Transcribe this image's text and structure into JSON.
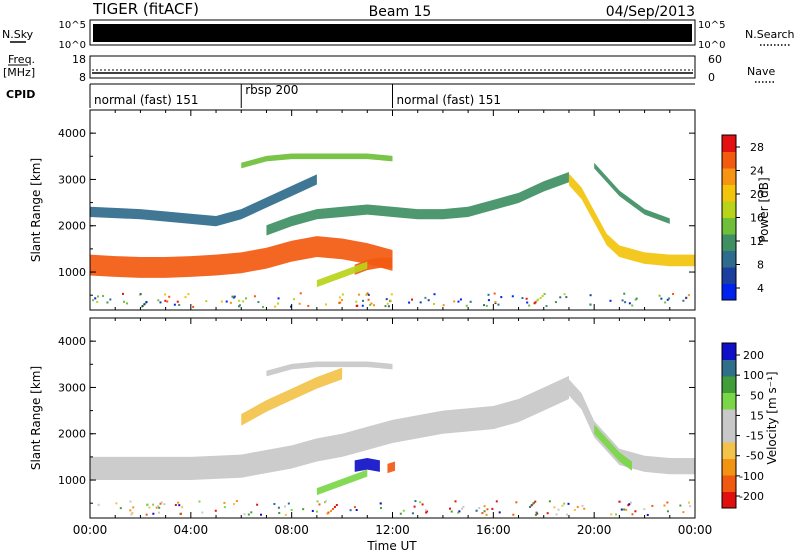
{
  "header": {
    "radar": "TIGER (fitACF)",
    "beam": "Beam 15",
    "date": "04/Sep/2013"
  },
  "summary_panels": {
    "nsky_label": "N.Sky",
    "nsky_ticks": [
      "10^5",
      "10^0"
    ],
    "nsearch_label": "N.Search",
    "nsearch_ticks": [
      "10^5",
      "10^0"
    ],
    "freq_label": "Freq.",
    "freq_unit": "[MHz]",
    "freq_ticks": [
      "18",
      "8"
    ],
    "nave_label": "Nave",
    "nave_ticks": [
      "60",
      "0"
    ],
    "cpid_label": "CPID",
    "cpid_segments": [
      {
        "label": "normal (fast) 151",
        "start_h": 0,
        "end_h": 6
      },
      {
        "label": "rbsp 200",
        "start_h": 6,
        "end_h": 12
      },
      {
        "label": "normal (fast) 151",
        "start_h": 12,
        "end_h": 24
      }
    ]
  },
  "colors": {
    "power_scale": [
      "#0022ee",
      "#1a3f9e",
      "#2f6b8c",
      "#3f8f63",
      "#6fbf3a",
      "#b8d418",
      "#f2c40c",
      "#f79411",
      "#f25a10",
      "#e21010"
    ],
    "velocity_scale": [
      "#e01010",
      "#f05a10",
      "#f29312",
      "#f2c24a",
      "#c8c8c8",
      "#c8c8c8",
      "#7ad646",
      "#3f9e3a",
      "#2f6f8a",
      "#1010c8"
    ]
  },
  "chart_data": [
    {
      "type": "heatmap",
      "name": "power",
      "xlabel": "Time UT",
      "ylabel": "Slant Range [km]",
      "xlim": [
        0,
        24
      ],
      "ylim": [
        180,
        4500
      ],
      "x_ticks": [
        "00:00",
        "04:00",
        "08:00",
        "12:00",
        "16:00",
        "20:00",
        "00:00"
      ],
      "y_ticks": [
        "1000",
        "2000",
        "3000",
        "4000"
      ],
      "colorbar_label": "Power [dB]",
      "colorbar_ticks": [
        "28",
        "24",
        "20",
        "16",
        "12",
        "8",
        "4"
      ],
      "colorbar_range": [
        0,
        30
      ],
      "bands": [
        {
          "x": [
            0,
            1,
            2,
            3,
            4,
            5,
            6,
            7,
            8,
            9,
            10,
            11,
            12
          ],
          "y_center": [
            1150,
            1120,
            1100,
            1100,
            1120,
            1150,
            1200,
            1300,
            1450,
            1550,
            1500,
            1400,
            1250
          ],
          "width": 450,
          "value": 24
        },
        {
          "x": [
            0,
            2,
            4,
            5,
            6,
            7,
            8,
            9
          ],
          "y_center": [
            2300,
            2250,
            2150,
            2100,
            2250,
            2500,
            2750,
            3000
          ],
          "width": 220,
          "value": 8
        },
        {
          "x": [
            6,
            7,
            8,
            9,
            10,
            11,
            12
          ],
          "y_center": [
            3300,
            3450,
            3500,
            3500,
            3500,
            3500,
            3450
          ],
          "width": 120,
          "value": 14
        },
        {
          "x": [
            7,
            8,
            9,
            10,
            11,
            12,
            13,
            14,
            15,
            16,
            17,
            18,
            19
          ],
          "y_center": [
            1900,
            2100,
            2250,
            2300,
            2350,
            2300,
            2250,
            2250,
            2300,
            2450,
            2600,
            2850,
            3050
          ],
          "width": 220,
          "value": 10
        },
        {
          "x": [
            19,
            19.5,
            20,
            20.5,
            21,
            22,
            23,
            24
          ],
          "y_center": [
            3000,
            2700,
            2200,
            1700,
            1450,
            1300,
            1250,
            1250
          ],
          "width": 250,
          "value": 18
        },
        {
          "x": [
            20,
            20.5,
            21,
            22,
            23
          ],
          "y_center": [
            3300,
            3000,
            2700,
            2300,
            2100
          ],
          "width": 120,
          "value": 10
        },
        {
          "x": [
            10.5,
            11,
            11.5,
            12
          ],
          "y_center": [
            1050,
            1150,
            1200,
            1200
          ],
          "width": 220,
          "value": 26
        },
        {
          "x": [
            9,
            9.5,
            10,
            10.5,
            11
          ],
          "y_center": [
            750,
            850,
            950,
            1050,
            1150
          ],
          "width": 150,
          "value": 16
        }
      ]
    },
    {
      "type": "heatmap",
      "name": "velocity",
      "xlabel": "Time UT",
      "ylabel": "Slant Range [km]",
      "xlim": [
        0,
        24
      ],
      "ylim": [
        180,
        4500
      ],
      "x_ticks": [
        "00:00",
        "04:00",
        "08:00",
        "12:00",
        "16:00",
        "20:00",
        "00:00"
      ],
      "y_ticks": [
        "1000",
        "2000",
        "3000",
        "4000"
      ],
      "colorbar_label": "Velocity [m s⁻¹]",
      "colorbar_ticks": [
        "200",
        "100",
        "50",
        "15",
        "-15",
        "-50",
        "-100",
        "-200"
      ],
      "colorbar_range": [
        -250,
        250
      ],
      "bands": [
        {
          "x": [
            0,
            2,
            4,
            6,
            8,
            9,
            10,
            11,
            12,
            13,
            14,
            16,
            17,
            18,
            19
          ],
          "y_center": [
            1250,
            1250,
            1250,
            1300,
            1500,
            1650,
            1750,
            1900,
            2050,
            2150,
            2250,
            2350,
            2500,
            2750,
            3000
          ],
          "width": 500,
          "value": 0
        },
        {
          "x": [
            19,
            19.5,
            20,
            21,
            22,
            23,
            24
          ],
          "y_center": [
            3000,
            2700,
            2100,
            1500,
            1350,
            1300,
            1300
          ],
          "width": 350,
          "value": 0
        },
        {
          "x": [
            6,
            7,
            8,
            9,
            10
          ],
          "y_center": [
            2300,
            2600,
            2850,
            3100,
            3300
          ],
          "width": 250,
          "value": -60
        },
        {
          "x": [
            7,
            8,
            9,
            10,
            11,
            12
          ],
          "y_center": [
            3300,
            3450,
            3500,
            3500,
            3500,
            3450
          ],
          "width": 120,
          "value": -15
        },
        {
          "x": [
            10.5,
            11,
            11.5
          ],
          "y_center": [
            1300,
            1350,
            1300
          ],
          "width": 250,
          "value": 200
        },
        {
          "x": [
            11.8,
            12.1
          ],
          "y_center": [
            1250,
            1300
          ],
          "width": 200,
          "value": -200
        },
        {
          "x": [
            9,
            9.5,
            10,
            10.5,
            11
          ],
          "y_center": [
            750,
            850,
            950,
            1050,
            1150
          ],
          "width": 150,
          "value": 50
        },
        {
          "x": [
            20,
            20.5,
            21,
            21.5
          ],
          "y_center": [
            2100,
            1800,
            1500,
            1300
          ],
          "width": 200,
          "value": 60
        }
      ]
    }
  ]
}
